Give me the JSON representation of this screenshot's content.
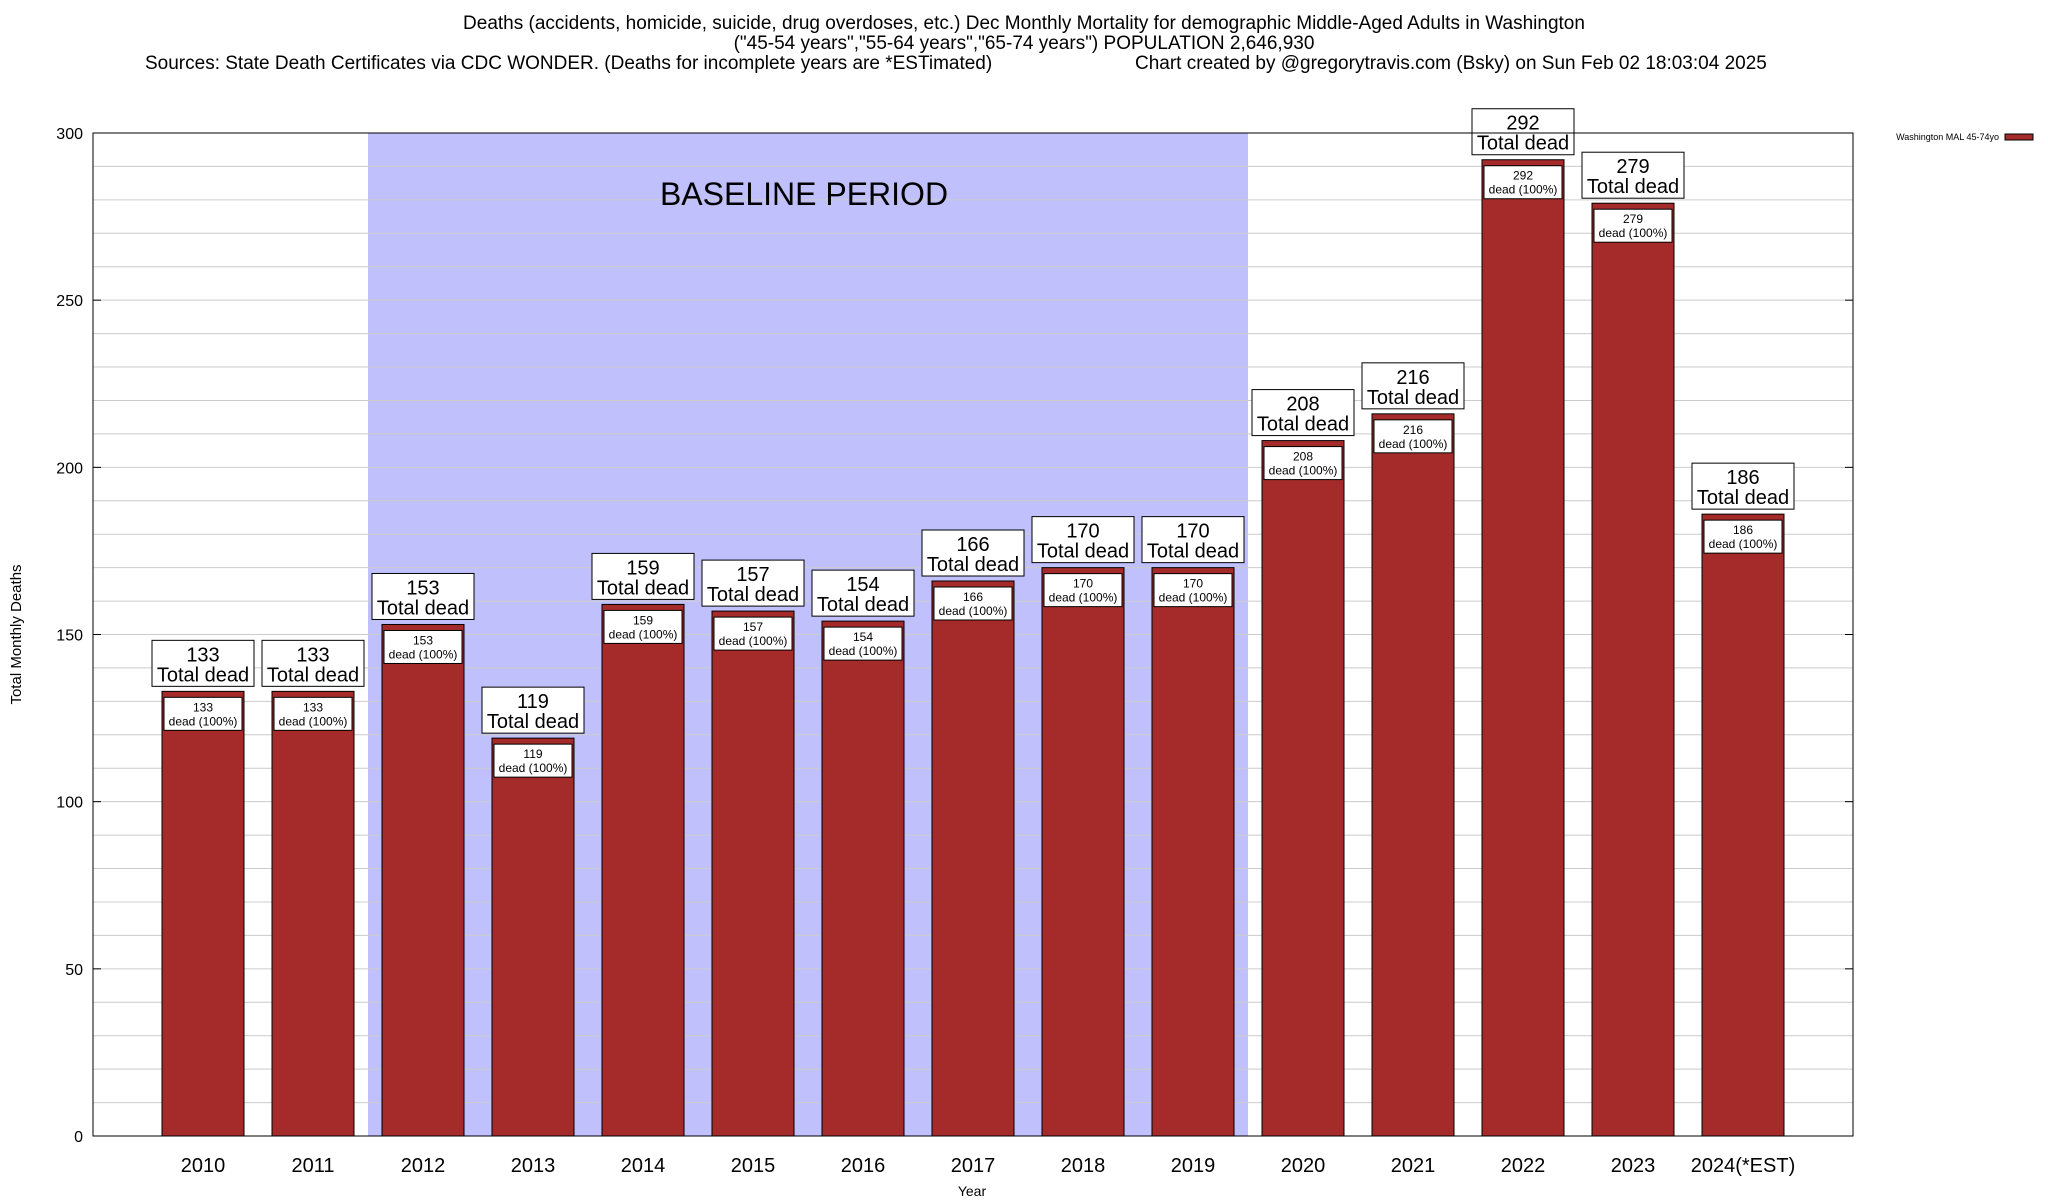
{
  "title_lines": [
    "Deaths (accidents, homicide, suicide, drug overdoses, etc.) Dec Monthly Mortality for demographic Middle-Aged Adults in Washington",
    "(\"45-54 years\",\"55-64 years\",\"65-74 years\") POPULATION 2,646,930"
  ],
  "sources_text": "Sources: State Death Certificates via CDC WONDER. (Deaths for incomplete years are *ESTimated)",
  "credit_text": "Chart created by @gregorytravis.com (Bsky) on Sun Feb 02 18:03:04 2025",
  "colors": {
    "bar": "#a52a2a",
    "baseline_band": "#c0c0fd",
    "grid": "#cccccc"
  },
  "chart_data": {
    "type": "bar",
    "xlabel": "Year",
    "ylabel": "Total Monthly Deaths",
    "ylim": [
      0,
      300
    ],
    "yticks": [
      0,
      50,
      100,
      150,
      200,
      250,
      300
    ],
    "grid": true,
    "legend_position": "top-right",
    "categories": [
      "2010",
      "2011",
      "2012",
      "2013",
      "2014",
      "2015",
      "2016",
      "2017",
      "2018",
      "2019",
      "2020",
      "2021",
      "2022",
      "2023",
      "2024(*EST)"
    ],
    "series": [
      {
        "name": "Washington MAL 45-74yo",
        "values": [
          133,
          133,
          153,
          119,
          159,
          157,
          154,
          166,
          170,
          170,
          208,
          216,
          292,
          279,
          186
        ]
      }
    ],
    "annotations": {
      "total_label": "Total dead",
      "inner_label": "dead (100%)",
      "baseline_text": "BASELINE PERIOD",
      "baseline_range": [
        "2012",
        "2019"
      ]
    }
  }
}
